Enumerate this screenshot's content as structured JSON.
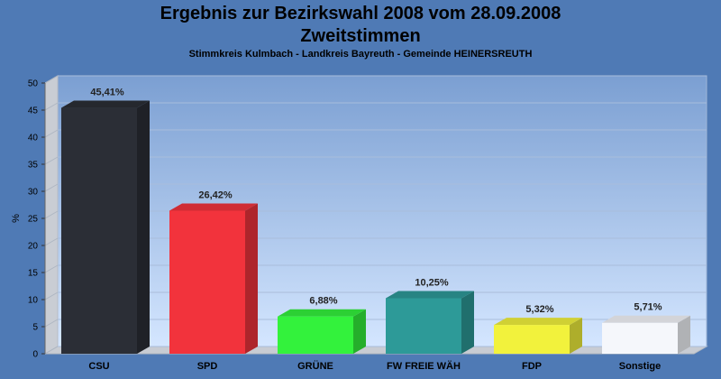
{
  "chart_data": {
    "type": "bar",
    "title": "Ergebnis zur Bezirkswahl 2008 vom 28.09.2008",
    "title_line2": "Zweitstimmen",
    "subtitle": "Stimmkreis Kulmbach - Landkreis Bayreuth - Gemeinde HEINERSREUTH",
    "xlabel": "",
    "ylabel": "%",
    "ylim": [
      0,
      50
    ],
    "yticks": [
      0,
      5,
      10,
      15,
      20,
      25,
      30,
      35,
      40,
      45,
      50
    ],
    "grid": true,
    "categories": [
      "CSU",
      "SPD",
      "GRÜNE",
      "FW FREIE WÄH",
      "FDP",
      "Sonstige"
    ],
    "values": [
      45.41,
      26.42,
      6.88,
      10.25,
      5.32,
      5.71
    ],
    "value_labels": [
      "45,41%",
      "26,42%",
      "6,88%",
      "10,25%",
      "5,32%",
      "5,71%"
    ],
    "colors": [
      "#2b2e36",
      "#f2333c",
      "#33f23c",
      "#2d9a98",
      "#f2f23c",
      "#f5f7fb"
    ]
  }
}
